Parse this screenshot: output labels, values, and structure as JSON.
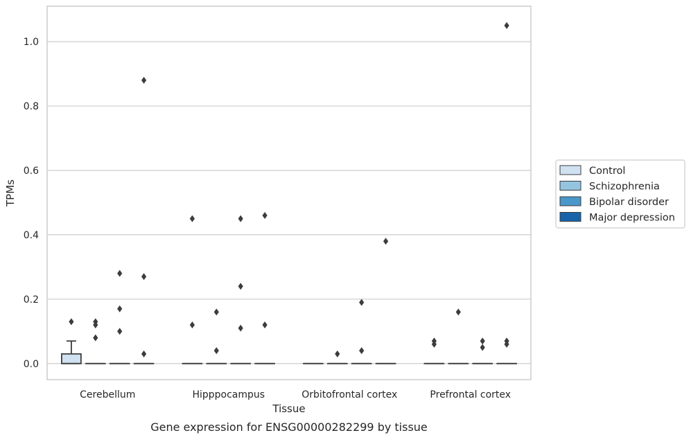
{
  "chart_data": {
    "type": "box",
    "caption": "Gene expression for ENSG00000282299 by tissue",
    "xlabel": "Tissue",
    "ylabel": "TPMs",
    "ylim": [
      -0.05,
      1.11
    ],
    "yticks": [
      "0.0",
      "0.2",
      "0.4",
      "0.6",
      "0.8",
      "1.0"
    ],
    "grid": "horizontal",
    "legend_position": "right",
    "categories": [
      "Cerebellum",
      "Hipppocampus",
      "Orbitofrontal cortex",
      "Prefrontal cortex"
    ],
    "series": [
      {
        "name": "Control",
        "color": "#d0e1f2",
        "boxes": [
          {
            "q1": 0.0,
            "median": 0.0,
            "q3": 0.03,
            "whisker_low": 0.0,
            "whisker_high": 0.07,
            "outliers": [
              0.13
            ]
          },
          {
            "q1": 0.0,
            "median": 0.0,
            "q3": 0.0,
            "whisker_low": 0.0,
            "whisker_high": 0.0,
            "outliers": [
              0.45,
              0.12
            ]
          },
          {
            "q1": 0.0,
            "median": 0.0,
            "q3": 0.0,
            "whisker_low": 0.0,
            "whisker_high": 0.0,
            "outliers": []
          },
          {
            "q1": 0.0,
            "median": 0.0,
            "q3": 0.0,
            "whisker_low": 0.0,
            "whisker_high": 0.0,
            "outliers": [
              0.07,
              0.06
            ]
          }
        ]
      },
      {
        "name": "Schizophrenia",
        "color": "#94c4df",
        "boxes": [
          {
            "q1": 0.0,
            "median": 0.0,
            "q3": 0.0,
            "whisker_low": 0.0,
            "whisker_high": 0.0,
            "outliers": [
              0.13,
              0.12,
              0.08
            ]
          },
          {
            "q1": 0.0,
            "median": 0.0,
            "q3": 0.0,
            "whisker_low": 0.0,
            "whisker_high": 0.0,
            "outliers": [
              0.16,
              0.04
            ]
          },
          {
            "q1": 0.0,
            "median": 0.0,
            "q3": 0.0,
            "whisker_low": 0.0,
            "whisker_high": 0.0,
            "outliers": [
              0.03
            ]
          },
          {
            "q1": 0.0,
            "median": 0.0,
            "q3": 0.0,
            "whisker_low": 0.0,
            "whisker_high": 0.0,
            "outliers": [
              0.16
            ]
          }
        ]
      },
      {
        "name": "Bipolar disorder",
        "color": "#4a98c9",
        "boxes": [
          {
            "q1": 0.0,
            "median": 0.0,
            "q3": 0.0,
            "whisker_low": 0.0,
            "whisker_high": 0.0,
            "outliers": [
              0.28,
              0.17,
              0.1
            ]
          },
          {
            "q1": 0.0,
            "median": 0.0,
            "q3": 0.0,
            "whisker_low": 0.0,
            "whisker_high": 0.0,
            "outliers": [
              0.45,
              0.24,
              0.11
            ]
          },
          {
            "q1": 0.0,
            "median": 0.0,
            "q3": 0.0,
            "whisker_low": 0.0,
            "whisker_high": 0.0,
            "outliers": [
              0.19,
              0.04
            ]
          },
          {
            "q1": 0.0,
            "median": 0.0,
            "q3": 0.0,
            "whisker_low": 0.0,
            "whisker_high": 0.0,
            "outliers": [
              0.07,
              0.05
            ]
          }
        ]
      },
      {
        "name": "Major depression",
        "color": "#1764ab",
        "boxes": [
          {
            "q1": 0.0,
            "median": 0.0,
            "q3": 0.0,
            "whisker_low": 0.0,
            "whisker_high": 0.0,
            "outliers": [
              0.88,
              0.27,
              0.03
            ]
          },
          {
            "q1": 0.0,
            "median": 0.0,
            "q3": 0.0,
            "whisker_low": 0.0,
            "whisker_high": 0.0,
            "outliers": [
              0.46,
              0.12
            ]
          },
          {
            "q1": 0.0,
            "median": 0.0,
            "q3": 0.0,
            "whisker_low": 0.0,
            "whisker_high": 0.0,
            "outliers": [
              0.38
            ]
          },
          {
            "q1": 0.0,
            "median": 0.0,
            "q3": 0.0,
            "whisker_low": 0.0,
            "whisker_high": 0.0,
            "outliers": [
              1.05,
              0.07,
              0.06
            ]
          }
        ]
      }
    ],
    "colors": {
      "axes_edge": "#cccccc",
      "grid": "#cccccc",
      "box_line": "#3c3c3c",
      "outlier": "#3c3c3c",
      "legend_edge": "#cccccc"
    }
  }
}
